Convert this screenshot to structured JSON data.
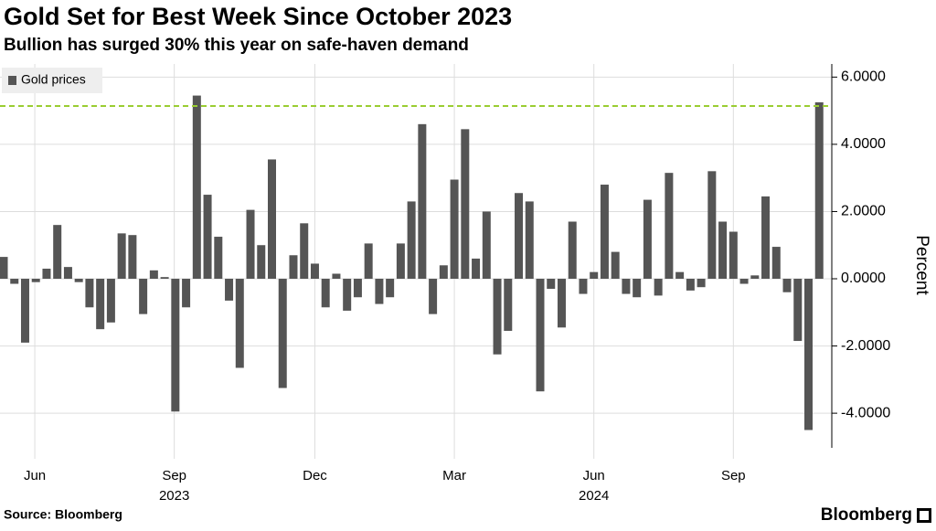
{
  "chart_data": {
    "type": "bar",
    "title": "Gold Set for Best Week Since October 2023",
    "subtitle": "Bullion has surged 30% this year on safe-haven demand",
    "source": "Source: Bloomberg",
    "brand": "Bloomberg",
    "y_label": "Percent",
    "categories": [
      null,
      null,
      null,
      null,
      null,
      null,
      null,
      null,
      null,
      null,
      null,
      null,
      null,
      null,
      null,
      null,
      null,
      null,
      null,
      null,
      null,
      null,
      null,
      null,
      null,
      null,
      null,
      null,
      null,
      null,
      null,
      null,
      null,
      null,
      null,
      null,
      null,
      null,
      null,
      null,
      null,
      null,
      null,
      null,
      null,
      null,
      null,
      null,
      null,
      null,
      null,
      null,
      null,
      null,
      null,
      null,
      null,
      null,
      null,
      null,
      null,
      null,
      null,
      null,
      null,
      null,
      null,
      null,
      null,
      null,
      null,
      null,
      null,
      null,
      null,
      null,
      null
    ],
    "series": [
      {
        "name": "Gold prices",
        "color": "#555555",
        "values": [
          0.65,
          -0.15,
          -1.9,
          -0.1,
          0.3,
          1.6,
          0.35,
          -0.1,
          -0.85,
          -1.5,
          -1.3,
          1.35,
          1.3,
          -1.05,
          0.25,
          0.05,
          -3.95,
          -0.85,
          5.45,
          2.5,
          1.25,
          -0.65,
          -2.65,
          2.05,
          1.0,
          3.55,
          -3.25,
          0.7,
          1.65,
          0.45,
          -0.85,
          0.15,
          -0.95,
          -0.55,
          1.05,
          -0.75,
          -0.55,
          1.05,
          2.3,
          4.6,
          -1.05,
          0.4,
          2.95,
          4.45,
          0.6,
          2.0,
          -2.25,
          -1.55,
          2.55,
          2.3,
          -3.35,
          -0.3,
          -1.45,
          1.7,
          -0.45,
          0.2,
          2.8,
          0.8,
          -0.45,
          -0.55,
          2.35,
          -0.5,
          3.15,
          0.2,
          -0.35,
          -0.25,
          3.2,
          1.7,
          1.4,
          -0.15,
          0.1,
          2.45,
          0.95,
          -0.4,
          -1.85,
          -4.5,
          5.25
        ]
      }
    ],
    "reference_line": {
      "value": 5.14,
      "color": "#9acd32"
    },
    "ylim": [
      -5.03,
      6.39
    ],
    "yticks": [
      {
        "value": -4,
        "label": "-4.0000"
      },
      {
        "value": -2,
        "label": "-2.0000"
      },
      {
        "value": 0,
        "label": "0.0000"
      },
      {
        "value": 2,
        "label": "2.0000"
      },
      {
        "value": 4,
        "label": "4.0000"
      },
      {
        "value": 6,
        "label": "6.0000"
      }
    ],
    "xticks": [
      {
        "value": 2.9,
        "label": "Jun"
      },
      {
        "value": 15.9,
        "label": "Sep"
      },
      {
        "value": 29.0,
        "label": "Dec"
      },
      {
        "value": 42.0,
        "label": "Mar"
      },
      {
        "value": 55.0,
        "label": "Jun"
      },
      {
        "value": 68.0,
        "label": "Sep"
      }
    ],
    "x_year_ticks": [
      {
        "value": 15.9,
        "label": "2023"
      },
      {
        "value": 55.0,
        "label": "2024"
      }
    ],
    "grid": true,
    "legend": "top-left"
  }
}
